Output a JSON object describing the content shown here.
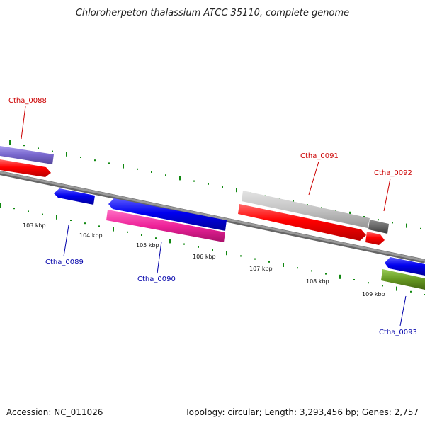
{
  "title": "Chloroherpeton thalassium ATCC 35110, complete genome",
  "footer": {
    "accession": "Accession: NC_011026",
    "summary": "Topology: circular; Length: 3,293,456 bp; Genes: 2,757"
  },
  "scale_labels": [
    "103 kbp",
    "104 kbp",
    "105 kbp",
    "106 kbp",
    "107 kbp",
    "108 kbp",
    "109 kbp"
  ],
  "gene_labels": {
    "ctha_0088": "Ctha_0088",
    "ctha_0089": "Ctha_0089",
    "ctha_0090": "Ctha_0090",
    "ctha_0091": "Ctha_0091",
    "ctha_0092": "Ctha_0092",
    "ctha_0093": "Ctha_0093"
  },
  "colors": {
    "forward_label": "#cc0000",
    "reverse_label": "#0000aa",
    "backbone": "#888888",
    "tick": "#118811",
    "cds_red": "#ff0000",
    "cds_blue": "#0000ee",
    "pseudo_purple": "#7766cc",
    "rrna_pink": "#ee2299",
    "grey_feature": "#c4c4c4",
    "dark_grey_feature": "#666666",
    "olive_feature": "#669922"
  }
}
